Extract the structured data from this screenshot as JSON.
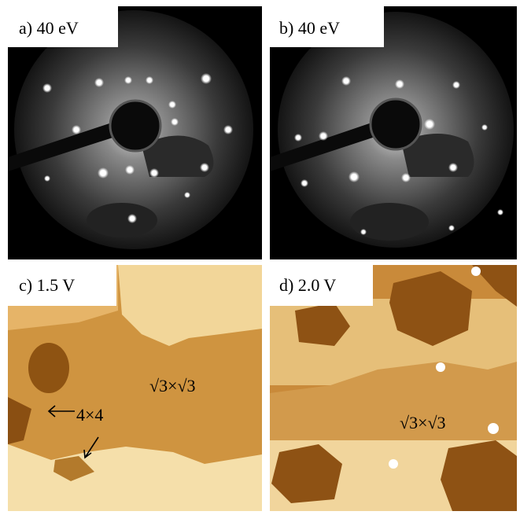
{
  "panels": [
    {
      "label": "a) 40 eV"
    },
    {
      "label": "b) 40 eV"
    },
    {
      "label": "c) 1.5 V",
      "annotations": [
        "√3×√3",
        "4×4"
      ]
    },
    {
      "label": "d) 2.0 V",
      "annotations": [
        "√3×√3"
      ]
    }
  ]
}
